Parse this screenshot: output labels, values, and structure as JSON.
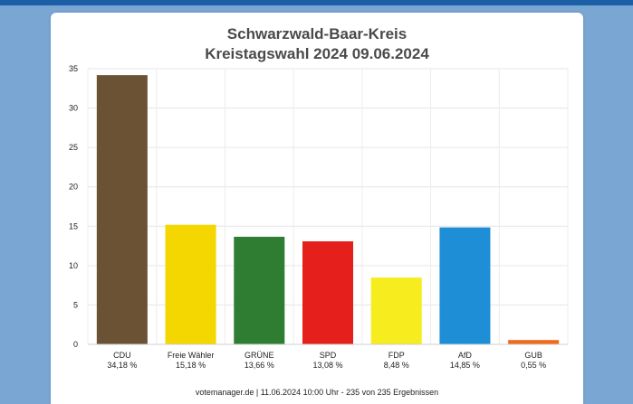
{
  "chart_data": {
    "type": "bar",
    "title": "Schwarzwald-Baar-Kreis",
    "subtitle": "Kreistagswahl 2024 09.06.2024",
    "categories": [
      "CDU",
      "Freie Wähler",
      "GRÜNE",
      "SPD",
      "FDP",
      "AfD",
      "GUB"
    ],
    "percent_labels": [
      "34,18 %",
      "15,18 %",
      "13,66 %",
      "13,08 %",
      "8,48 %",
      "14,85 %",
      "0,55 %"
    ],
    "values": [
      34.18,
      15.18,
      13.66,
      13.08,
      8.48,
      14.85,
      0.55
    ],
    "colors": [
      "#6b5234",
      "#f4d600",
      "#2e7d32",
      "#e41f1c",
      "#f6ec1e",
      "#1e8fd6",
      "#ef6a1b"
    ],
    "ylim": [
      0,
      35
    ],
    "yticks": [
      0,
      5,
      10,
      15,
      20,
      25,
      30,
      35
    ],
    "grid": true,
    "xlabel": "",
    "ylabel": ""
  },
  "footer": "votemanager.de | 11.06.2024 10:00 Uhr - 235 von 235 Ergebnissen"
}
